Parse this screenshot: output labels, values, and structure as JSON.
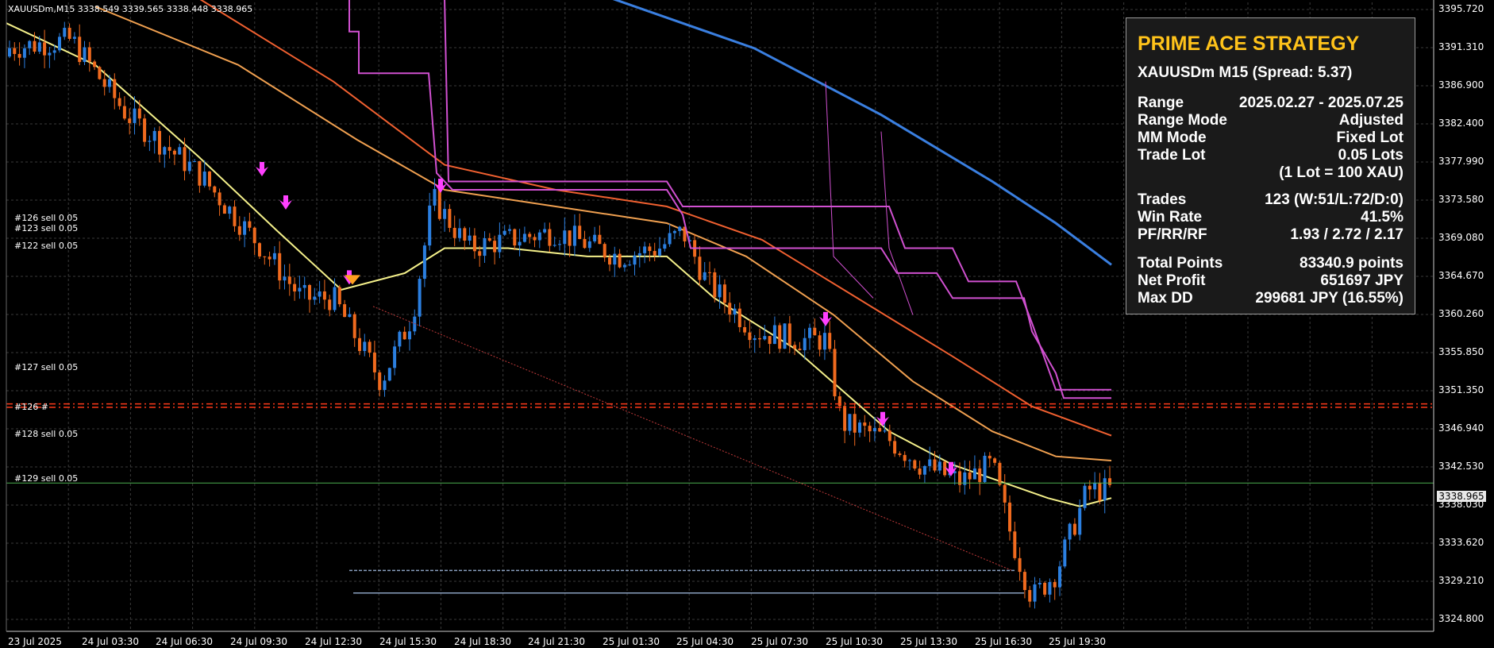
{
  "symbol_header": "XAUUSDm,M15  3338.549 3339.565 3338.448 3338.965",
  "current_price": "3338.965",
  "price_axis": [
    "3395.720",
    "3391.310",
    "3386.900",
    "3382.400",
    "3377.990",
    "3373.580",
    "3369.080",
    "3364.670",
    "3360.260",
    "3355.850",
    "3351.350",
    "3346.940",
    "3342.530",
    "3338.030",
    "3333.620",
    "3329.210",
    "3324.800"
  ],
  "time_axis": [
    "23 Jul 2025",
    "24 Jul 03:30",
    "24 Jul 06:30",
    "24 Jul 09:30",
    "24 Jul 12:30",
    "24 Jul 15:30",
    "24 Jul 18:30",
    "24 Jul 21:30",
    "25 Jul 01:30",
    "25 Jul 04:30",
    "25 Jul 07:30",
    "25 Jul 10:30",
    "25 Jul 13:30",
    "25 Jul 16:30",
    "25 Jul 19:30"
  ],
  "trade_labels": [
    {
      "text": "#126 sell 0.05"
    },
    {
      "text": "#123 sell 0.05"
    },
    {
      "text": "#122 sell 0.05"
    },
    {
      "text": "#127 sell 0.05"
    },
    {
      "text": "#126 #"
    },
    {
      "text": "#128 sell 0.05"
    },
    {
      "text": "#129 sell 0.05"
    }
  ],
  "colors": {
    "bull": "#2b7fe0",
    "bear": "#f06a1e",
    "ma_yellow": "#f4f08a",
    "ma_orange": "#f0a050",
    "ma_red": "#f06030",
    "ma_blue": "#3a7fe0",
    "stop_magenta": "#d050d0",
    "accent_title": "#ffc31a"
  },
  "panel": {
    "title": "PRIME ACE STRATEGY",
    "subtitle": "XAUUSDm M15 (Spread: 5.37)",
    "rows": [
      {
        "k": "Range",
        "v": "2025.02.27 - 2025.07.25"
      },
      {
        "k": "Range Mode",
        "v": "Adjusted"
      },
      {
        "k": "MM Mode",
        "v": "Fixed Lot"
      },
      {
        "k": "Trade Lot",
        "v": "0.05 Lots"
      },
      {
        "k": "",
        "v": "(1 Lot = 100 XAU)"
      },
      {
        "k": "Trades",
        "v": "123 (W:51/L:72/D:0)"
      },
      {
        "k": "Win Rate",
        "v": "41.5%"
      },
      {
        "k": "PF/RR/RF",
        "v": "1.93 / 2.72 / 2.17"
      },
      {
        "k": "Total Points",
        "v": "83340.9 points"
      },
      {
        "k": "Net Profit",
        "v": "651697 JPY"
      },
      {
        "k": "Max DD",
        "v": "299681 JPY (16.55%)"
      }
    ]
  }
}
